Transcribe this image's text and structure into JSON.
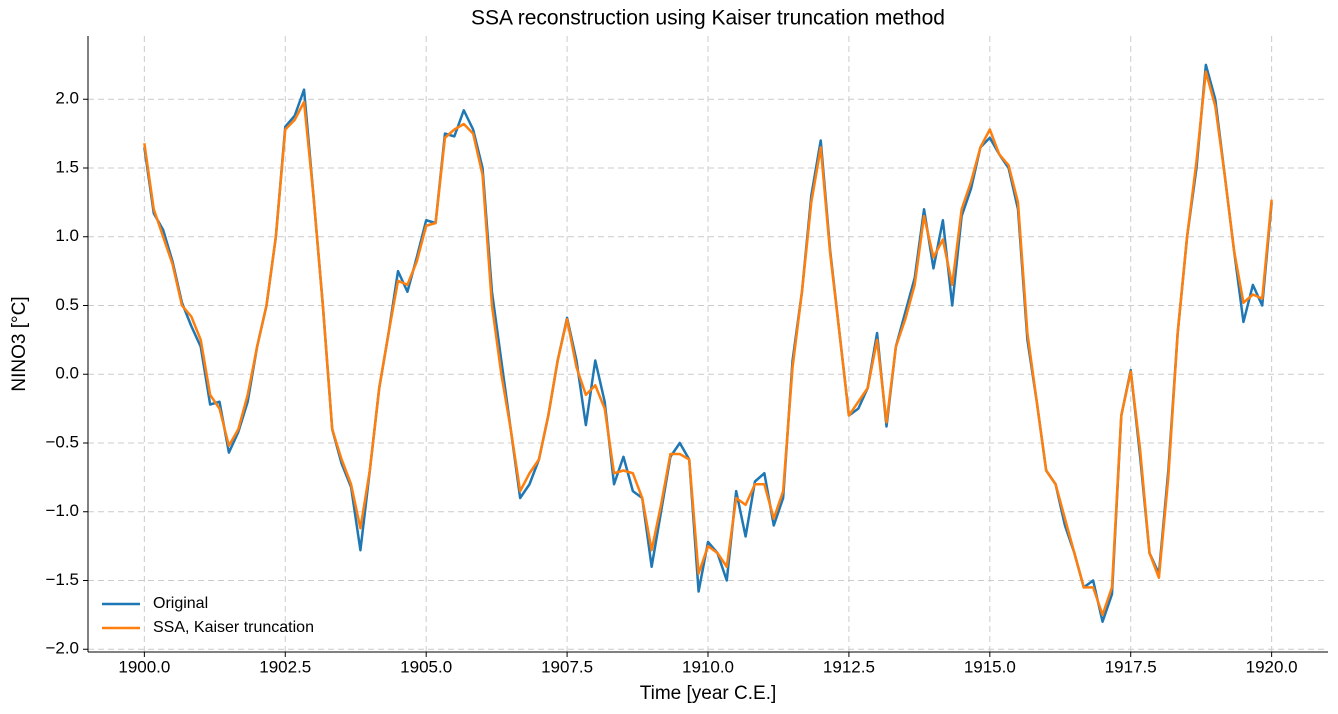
{
  "chart_data": {
    "type": "line",
    "title": "SSA reconstruction using Kaiser truncation method",
    "xlabel": "Time [year C.E.]",
    "ylabel": "NINO3 [°C]",
    "xlim": [
      1899.0,
      1921.0
    ],
    "ylim": [
      -2.02,
      2.46
    ],
    "xticks": [
      {
        "value": 1900,
        "label": "1900.0"
      },
      {
        "value": 1902.5,
        "label": "1902.5"
      },
      {
        "value": 1905,
        "label": "1905.0"
      },
      {
        "value": 1907.5,
        "label": "1907.5"
      },
      {
        "value": 1910,
        "label": "1910.0"
      },
      {
        "value": 1912.5,
        "label": "1912.5"
      },
      {
        "value": 1915,
        "label": "1915.0"
      },
      {
        "value": 1917.5,
        "label": "1917.5"
      },
      {
        "value": 1920,
        "label": "1920.0"
      }
    ],
    "yticks": [
      {
        "value": -2,
        "label": "−2.0"
      },
      {
        "value": -1.5,
        "label": "−1.5"
      },
      {
        "value": -1,
        "label": "−1.0"
      },
      {
        "value": -0.5,
        "label": "−0.5"
      },
      {
        "value": 0,
        "label": "0.0"
      },
      0.5,
      {
        "value": 1,
        "label": "1.0"
      },
      1.5,
      {
        "value": 2,
        "label": "2.0"
      }
    ],
    "grid": true,
    "legend": "lower left",
    "x": [
      1900,
      1900.167,
      1900.333,
      1900.5,
      1900.667,
      1900.833,
      1901,
      1901.167,
      1901.333,
      1901.5,
      1901.667,
      1901.833,
      1902,
      1902.167,
      1902.333,
      1902.5,
      1902.667,
      1902.833,
      1903,
      1903.167,
      1903.333,
      1903.5,
      1903.667,
      1903.833,
      1904,
      1904.167,
      1904.333,
      1904.5,
      1904.667,
      1904.833,
      1905,
      1905.167,
      1905.333,
      1905.5,
      1905.667,
      1905.833,
      1906,
      1906.167,
      1906.333,
      1906.5,
      1906.667,
      1906.833,
      1907,
      1907.167,
      1907.333,
      1907.5,
      1907.667,
      1907.833,
      1908,
      1908.167,
      1908.333,
      1908.5,
      1908.667,
      1908.833,
      1909,
      1909.167,
      1909.333,
      1909.5,
      1909.667,
      1909.833,
      1910,
      1910.167,
      1910.333,
      1910.5,
      1910.667,
      1910.833,
      1911,
      1911.167,
      1911.333,
      1911.5,
      1911.667,
      1911.833,
      1912,
      1912.167,
      1912.333,
      1912.5,
      1912.667,
      1912.833,
      1913,
      1913.167,
      1913.333,
      1913.5,
      1913.667,
      1913.833,
      1914,
      1914.167,
      1914.333,
      1914.5,
      1914.667,
      1914.833,
      1915,
      1915.167,
      1915.333,
      1915.5,
      1915.667,
      1915.833,
      1916,
      1916.167,
      1916.333,
      1916.5,
      1916.667,
      1916.833,
      1917,
      1917.167,
      1917.333,
      1917.5,
      1917.667,
      1917.833,
      1918,
      1918.167,
      1918.333,
      1918.5,
      1918.667,
      1918.833,
      1919,
      1919.167,
      1919.333,
      1919.5,
      1919.667,
      1919.833,
      1920
    ],
    "series": [
      {
        "name": "Original",
        "color": "#1f77b4",
        "values": [
          1.65,
          1.17,
          1.05,
          0.82,
          0.52,
          0.35,
          0.2,
          -0.22,
          -0.2,
          -0.57,
          -0.42,
          -0.2,
          0.2,
          0.5,
          1.0,
          1.8,
          1.88,
          2.07,
          1.3,
          0.5,
          -0.4,
          -0.65,
          -0.82,
          -1.28,
          -0.7,
          -0.1,
          0.3,
          0.75,
          0.6,
          0.85,
          1.12,
          1.1,
          1.75,
          1.73,
          1.92,
          1.78,
          1.5,
          0.6,
          0.1,
          -0.4,
          -0.9,
          -0.8,
          -0.62,
          -0.3,
          0.1,
          0.41,
          0.1,
          -0.37,
          0.1,
          -0.2,
          -0.8,
          -0.6,
          -0.85,
          -0.9,
          -1.4,
          -1.0,
          -0.6,
          -0.5,
          -0.62,
          -1.58,
          -1.22,
          -1.3,
          -1.5,
          -0.85,
          -1.18,
          -0.78,
          -0.72,
          -1.1,
          -0.9,
          0.1,
          0.6,
          1.3,
          1.7,
          0.9,
          0.3,
          -0.3,
          -0.25,
          -0.1,
          0.3,
          -0.38,
          0.2,
          0.45,
          0.7,
          1.2,
          0.77,
          1.12,
          0.5,
          1.15,
          1.35,
          1.65,
          1.72,
          1.6,
          1.5,
          1.2,
          0.25,
          -0.2,
          -0.7,
          -0.8,
          -1.1,
          -1.3,
          -1.55,
          -1.5,
          -1.8,
          -1.6,
          -0.3,
          0.03,
          -0.6,
          -1.3,
          -1.45,
          -0.7,
          0.3,
          1.0,
          1.5,
          2.25,
          2.0,
          1.45,
          0.9,
          0.38,
          0.65,
          0.5,
          1.25
        ]
      },
      {
        "name": "SSA, Kaiser truncation",
        "color": "#ff7f0e",
        "values": [
          1.68,
          1.2,
          1.0,
          0.8,
          0.5,
          0.42,
          0.25,
          -0.15,
          -0.25,
          -0.52,
          -0.4,
          -0.15,
          0.2,
          0.5,
          1.0,
          1.78,
          1.85,
          1.98,
          1.3,
          0.5,
          -0.4,
          -0.62,
          -0.8,
          -1.12,
          -0.7,
          -0.1,
          0.3,
          0.68,
          0.65,
          0.82,
          1.08,
          1.1,
          1.72,
          1.78,
          1.82,
          1.75,
          1.45,
          0.5,
          0.0,
          -0.4,
          -0.85,
          -0.72,
          -0.62,
          -0.3,
          0.1,
          0.4,
          0.05,
          -0.15,
          -0.08,
          -0.25,
          -0.72,
          -0.7,
          -0.72,
          -0.9,
          -1.28,
          -0.95,
          -0.58,
          -0.58,
          -0.62,
          -1.45,
          -1.25,
          -1.3,
          -1.4,
          -0.9,
          -0.95,
          -0.8,
          -0.8,
          -1.05,
          -0.85,
          0.05,
          0.6,
          1.25,
          1.65,
          0.88,
          0.3,
          -0.3,
          -0.2,
          -0.1,
          0.25,
          -0.35,
          0.2,
          0.4,
          0.65,
          1.15,
          0.85,
          0.98,
          0.65,
          1.2,
          1.4,
          1.65,
          1.78,
          1.6,
          1.52,
          1.25,
          0.3,
          -0.2,
          -0.7,
          -0.8,
          -1.05,
          -1.3,
          -1.55,
          -1.55,
          -1.75,
          -1.55,
          -0.3,
          0.02,
          -0.55,
          -1.3,
          -1.48,
          -0.75,
          0.3,
          1.0,
          1.55,
          2.2,
          1.95,
          1.45,
          0.9,
          0.52,
          0.58,
          0.55,
          1.27
        ]
      }
    ]
  }
}
